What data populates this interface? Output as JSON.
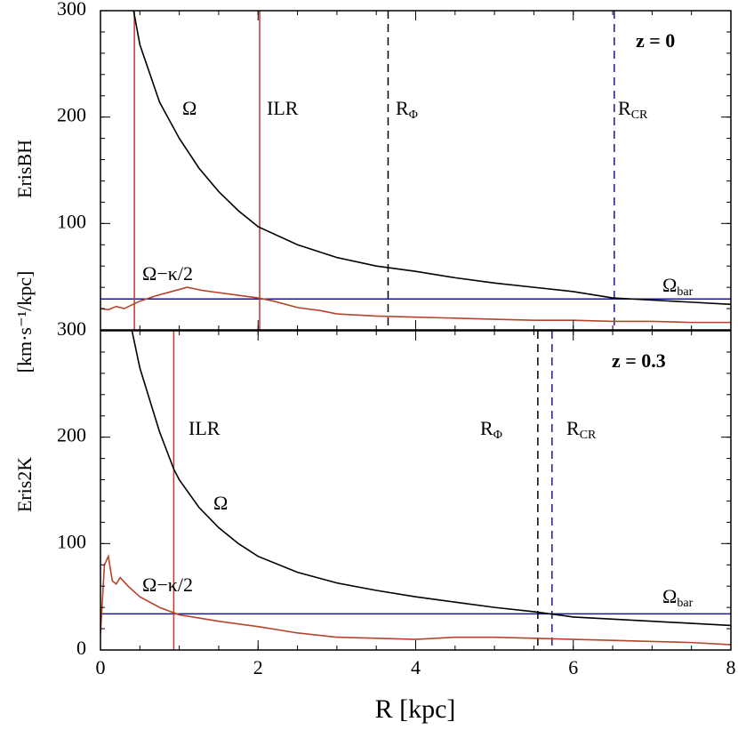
{
  "y_label": "[km·s⁻¹/kpc]",
  "chart_data": [
    {
      "type": "line",
      "panel_label": "ErisBH",
      "annotation": "z = 0",
      "xlim": [
        0,
        8
      ],
      "ylim": [
        0,
        300
      ],
      "xticks": [
        0,
        2,
        4,
        6,
        8
      ],
      "yticks": [
        100,
        200,
        300
      ],
      "series": [
        {
          "name": "Ω",
          "color": "#000000",
          "x": [
            0.42,
            0.5,
            0.75,
            1,
            1.25,
            1.5,
            1.75,
            2,
            2.5,
            3,
            3.5,
            4,
            4.5,
            5,
            5.5,
            6,
            6.5,
            7,
            7.5,
            8
          ],
          "values": [
            300,
            268,
            214,
            180,
            152,
            130,
            112,
            97,
            80,
            68,
            60,
            55,
            49,
            44,
            40,
            36,
            30,
            28,
            26,
            24
          ]
        },
        {
          "name": "Ω−κ/2",
          "color": "#b5452a",
          "x": [
            0,
            0.1,
            0.2,
            0.3,
            0.5,
            0.7,
            0.9,
            1.1,
            1.3,
            1.5,
            1.8,
            2.0,
            2.2,
            2.5,
            2.8,
            3.0,
            3.5,
            4.0,
            4.5,
            5.0,
            5.5,
            6.0,
            6.5,
            7.0,
            7.5,
            8.0
          ],
          "values": [
            20,
            19,
            22,
            20,
            27,
            32,
            36,
            40,
            37,
            35,
            32,
            30,
            27,
            21,
            18,
            15,
            13,
            12,
            11,
            10,
            9,
            9,
            8,
            8,
            7,
            7
          ]
        }
      ],
      "hline": {
        "name": "Ω",
        "sub": "bar",
        "y": 29,
        "color": "#1a1a8c"
      },
      "vlines": [
        {
          "x": 0.43,
          "color": "#c0392b",
          "dash": false
        },
        {
          "name": "ILR",
          "x": 2.02,
          "color": "#c0392b",
          "dash": false
        },
        {
          "name": "R",
          "sub": "Φ",
          "x": 3.65,
          "color": "#000000",
          "dash": true
        },
        {
          "name": "R",
          "sub": "CR",
          "x": 6.52,
          "color": "#1a1a8c",
          "dash": true
        }
      ]
    },
    {
      "type": "line",
      "panel_label": "Eris2K",
      "annotation": "z = 0.3",
      "x_label": "R [kpc]",
      "xlim": [
        0,
        8
      ],
      "ylim": [
        0,
        300
      ],
      "xticks": [
        0,
        2,
        4,
        6,
        8
      ],
      "yticks": [
        0,
        100,
        200,
        300
      ],
      "series": [
        {
          "name": "Ω",
          "color": "#000000",
          "x": [
            0.4,
            0.5,
            0.75,
            0.93,
            1,
            1.25,
            1.5,
            1.75,
            2,
            2.5,
            3,
            3.5,
            4,
            4.5,
            5,
            5.5,
            5.7,
            6,
            6.5,
            7,
            7.5,
            8
          ],
          "values": [
            300,
            265,
            205,
            170,
            160,
            134,
            115,
            100,
            88,
            73,
            63,
            56,
            50,
            45,
            40,
            36,
            34,
            31,
            29,
            27,
            25,
            23
          ]
        },
        {
          "name": "Ω−κ/2",
          "color": "#b5452a",
          "x": [
            0,
            0.05,
            0.1,
            0.15,
            0.2,
            0.25,
            0.35,
            0.5,
            0.75,
            1,
            1.25,
            1.5,
            2,
            2.5,
            3,
            3.5,
            4,
            4.5,
            5,
            5.5,
            6,
            6.5,
            7,
            7.5,
            8
          ],
          "values": [
            15,
            80,
            88,
            65,
            62,
            68,
            60,
            50,
            40,
            33,
            30,
            27,
            22,
            16,
            12,
            11,
            10,
            12,
            12,
            11,
            10,
            9,
            8,
            7,
            5
          ]
        }
      ],
      "hline": {
        "name": "Ω",
        "sub": "bar",
        "y": 34,
        "color": "#1a1a8c"
      },
      "vlines": [
        {
          "name": "ILR",
          "x": 0.93,
          "color": "#c0392b",
          "dash": false
        },
        {
          "name": "R",
          "sub": "Φ",
          "x": 5.55,
          "color": "#000000",
          "dash": true
        },
        {
          "name": "R",
          "sub": "CR",
          "x": 5.73,
          "color": "#1a1a8c",
          "dash": true
        }
      ]
    }
  ]
}
